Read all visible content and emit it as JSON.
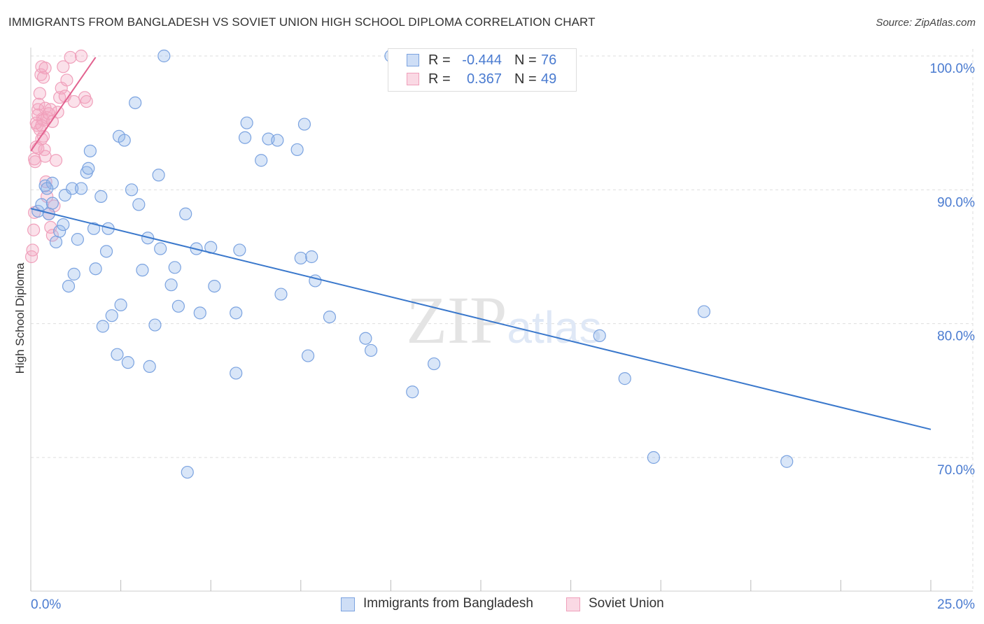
{
  "title": "IMMIGRANTS FROM BANGLADESH VS SOVIET UNION HIGH SCHOOL DIPLOMA CORRELATION CHART",
  "source": "Source: ZipAtlas.com",
  "watermark": "ZIPatlas",
  "legend": {
    "series1": {
      "r_label": "R =",
      "r_value": "-0.444",
      "n_label": "N =",
      "n_value": "76"
    },
    "series2": {
      "r_label": "R =",
      "r_value": "0.367",
      "n_label": "N =",
      "n_value": "49"
    }
  },
  "bottom_legend": {
    "series1": "Immigrants from Bangladesh",
    "series2": "Soviet Union"
  },
  "colors": {
    "blue_fill": "rgba(147,182,234,0.35)",
    "blue_stroke": "#7ba3e0",
    "blue_line": "#3a78cc",
    "pink_fill": "rgba(244,170,195,0.35)",
    "pink_stroke": "#f0a0bb",
    "pink_line": "#e2628f",
    "axis_text": "#4a7bd0",
    "grid": "#dddddd"
  },
  "chart_data": {
    "type": "scatter",
    "title": "IMMIGRANTS FROM BANGLADESH VS SOVIET UNION HIGH SCHOOL DIPLOMA CORRELATION CHART",
    "xlabel": "",
    "ylabel": "High School Diploma",
    "xlim": [
      0,
      25
    ],
    "ylim": [
      60,
      100
    ],
    "x_tick_labels": [
      "0.0%",
      "25.0%"
    ],
    "y_ticks": [
      100,
      90,
      80,
      70
    ],
    "y_tick_labels": [
      "100.0%",
      "90.0%",
      "80.0%",
      "70.0%"
    ],
    "grid": true,
    "series": [
      {
        "name": "Immigrants from Bangladesh",
        "r": -0.444,
        "n": 76,
        "trend": {
          "x": [
            0,
            25
          ],
          "y": [
            88.6,
            72.1
          ]
        },
        "points": [
          [
            0.2,
            88.4
          ],
          [
            0.4,
            90.3
          ],
          [
            0.5,
            88.2
          ],
          [
            0.6,
            90.5
          ],
          [
            0.7,
            86.1
          ],
          [
            0.8,
            86.9
          ],
          [
            0.9,
            87.4
          ],
          [
            0.95,
            89.6
          ],
          [
            1.05,
            82.8
          ],
          [
            1.15,
            90.1
          ],
          [
            1.2,
            83.7
          ],
          [
            1.3,
            86.3
          ],
          [
            1.4,
            90.1
          ],
          [
            1.55,
            91.3
          ],
          [
            1.6,
            91.6
          ],
          [
            1.65,
            92.9
          ],
          [
            1.75,
            87.1
          ],
          [
            1.8,
            84.1
          ],
          [
            1.95,
            89.5
          ],
          [
            2.0,
            79.8
          ],
          [
            2.1,
            85.4
          ],
          [
            2.15,
            87.1
          ],
          [
            2.25,
            80.6
          ],
          [
            2.4,
            77.7
          ],
          [
            2.45,
            94.0
          ],
          [
            2.5,
            81.4
          ],
          [
            2.6,
            93.7
          ],
          [
            2.7,
            77.1
          ],
          [
            2.8,
            90.0
          ],
          [
            2.9,
            96.5
          ],
          [
            3.0,
            88.9
          ],
          [
            3.1,
            84.0
          ],
          [
            3.25,
            86.4
          ],
          [
            3.3,
            76.8
          ],
          [
            3.45,
            79.9
          ],
          [
            3.55,
            91.1
          ],
          [
            3.6,
            85.6
          ],
          [
            3.7,
            100.0
          ],
          [
            3.9,
            82.9
          ],
          [
            4.0,
            84.2
          ],
          [
            4.1,
            81.3
          ],
          [
            4.3,
            88.2
          ],
          [
            4.35,
            68.9
          ],
          [
            4.6,
            85.6
          ],
          [
            4.7,
            80.8
          ],
          [
            5.0,
            85.7
          ],
          [
            5.1,
            82.8
          ],
          [
            5.7,
            80.8
          ],
          [
            5.7,
            76.3
          ],
          [
            5.8,
            85.5
          ],
          [
            5.95,
            93.9
          ],
          [
            6.0,
            95.0
          ],
          [
            6.4,
            92.2
          ],
          [
            6.6,
            93.8
          ],
          [
            6.85,
            93.7
          ],
          [
            6.95,
            82.2
          ],
          [
            7.4,
            93.0
          ],
          [
            7.5,
            84.9
          ],
          [
            7.6,
            94.9
          ],
          [
            7.7,
            77.6
          ],
          [
            7.8,
            85.0
          ],
          [
            7.9,
            83.2
          ],
          [
            8.3,
            80.5
          ],
          [
            9.3,
            78.9
          ],
          [
            9.45,
            78.0
          ],
          [
            10.0,
            100.0
          ],
          [
            10.6,
            74.9
          ],
          [
            11.2,
            77.0
          ],
          [
            15.8,
            79.1
          ],
          [
            16.5,
            75.9
          ],
          [
            17.3,
            70.0
          ],
          [
            18.7,
            80.9
          ],
          [
            21.0,
            69.7
          ],
          [
            0.3,
            88.9
          ],
          [
            0.45,
            90.1
          ],
          [
            0.6,
            89.0
          ]
        ]
      },
      {
        "name": "Soviet Union",
        "r": 0.367,
        "n": 49,
        "trend": {
          "x": [
            0.0,
            1.8
          ],
          "y": [
            92.9,
            99.9
          ]
        },
        "points": [
          [
            0.02,
            85.0
          ],
          [
            0.05,
            85.5
          ],
          [
            0.08,
            87.0
          ],
          [
            0.1,
            88.3
          ],
          [
            0.12,
            92.1
          ],
          [
            0.15,
            93.2
          ],
          [
            0.18,
            94.8
          ],
          [
            0.2,
            96.0
          ],
          [
            0.22,
            96.4
          ],
          [
            0.25,
            97.2
          ],
          [
            0.28,
            98.6
          ],
          [
            0.3,
            99.2
          ],
          [
            0.32,
            95.3
          ],
          [
            0.35,
            94.0
          ],
          [
            0.38,
            93.0
          ],
          [
            0.4,
            92.5
          ],
          [
            0.42,
            90.6
          ],
          [
            0.45,
            89.5
          ],
          [
            0.5,
            88.2
          ],
          [
            0.55,
            87.2
          ],
          [
            0.6,
            86.6
          ],
          [
            0.65,
            88.8
          ],
          [
            0.7,
            92.2
          ],
          [
            0.75,
            95.8
          ],
          [
            0.8,
            96.9
          ],
          [
            0.85,
            97.6
          ],
          [
            0.9,
            99.2
          ],
          [
            0.95,
            97.0
          ],
          [
            1.0,
            98.2
          ],
          [
            1.1,
            99.9
          ],
          [
            1.2,
            96.6
          ],
          [
            1.4,
            100.0
          ],
          [
            1.5,
            96.9
          ],
          [
            1.55,
            96.6
          ],
          [
            0.1,
            92.3
          ],
          [
            0.2,
            95.6
          ],
          [
            0.25,
            94.5
          ],
          [
            0.3,
            93.8
          ],
          [
            0.35,
            95.2
          ],
          [
            0.4,
            96.1
          ],
          [
            0.45,
            95.4
          ],
          [
            0.5,
            95.7
          ],
          [
            0.55,
            96.0
          ],
          [
            0.6,
            95.1
          ],
          [
            0.15,
            95.0
          ],
          [
            0.2,
            93.1
          ],
          [
            0.3,
            94.8
          ],
          [
            0.35,
            98.4
          ],
          [
            0.4,
            99.1
          ]
        ]
      }
    ]
  }
}
